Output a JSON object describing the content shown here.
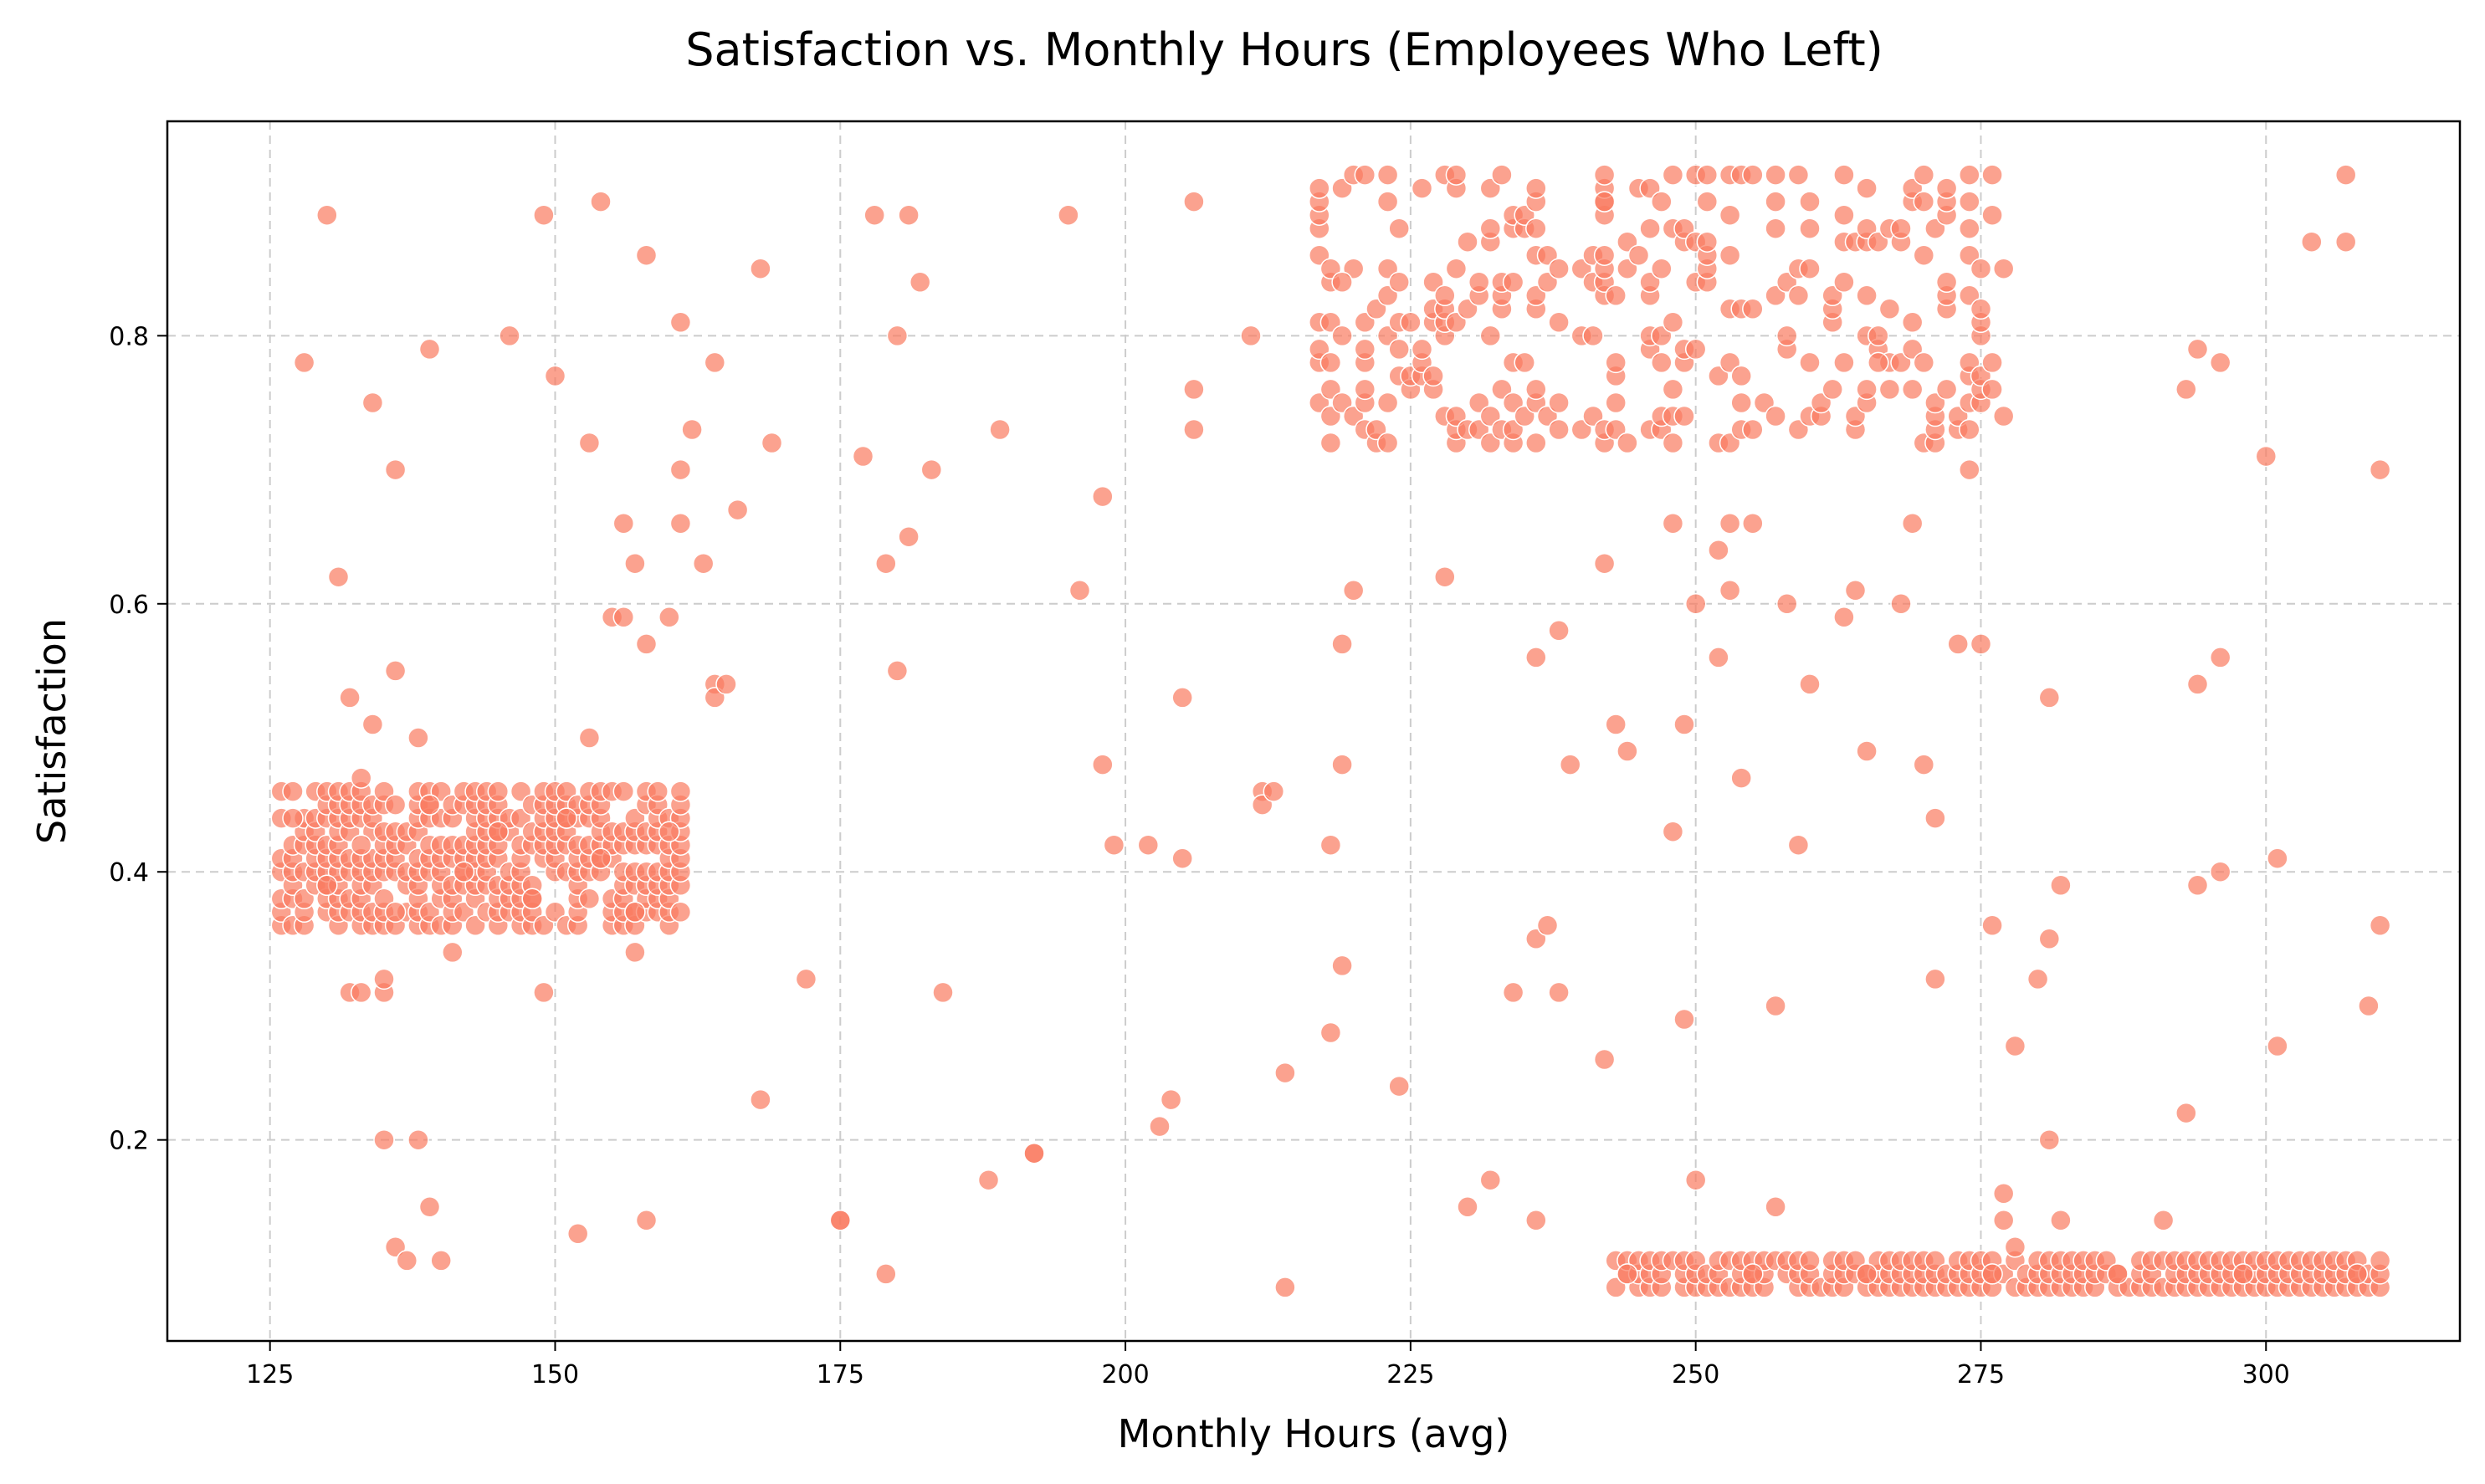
{
  "chart_data": {
    "type": "scatter",
    "title": "Satisfaction vs. Monthly Hours (Employees Who Left)",
    "xlabel": "Monthly Hours (avg)",
    "ylabel": "Satisfaction",
    "xlim": [
      116,
      317
    ],
    "ylim": [
      0.05,
      0.96
    ],
    "xticks": [
      125,
      150,
      175,
      200,
      225,
      250,
      275,
      300
    ],
    "yticks": [
      0.2,
      0.4,
      0.6,
      0.8
    ],
    "grid": true,
    "marker_color": "#fa7b5f",
    "marker_edge_color": "#ffffff",
    "marker_opacity": 0.7,
    "series": [
      {
        "values": [
          {
            "x": 130,
            "y": 0.89
          },
          {
            "x": 149,
            "y": 0.89
          },
          {
            "x": 154,
            "y": 0.9
          },
          {
            "x": 128,
            "y": 0.78
          },
          {
            "x": 134,
            "y": 0.75
          },
          {
            "x": 139,
            "y": 0.79
          },
          {
            "x": 146,
            "y": 0.8
          },
          {
            "x": 150,
            "y": 0.77
          },
          {
            "x": 131,
            "y": 0.62
          },
          {
            "x": 136,
            "y": 0.7
          },
          {
            "x": 132,
            "y": 0.53
          },
          {
            "x": 134,
            "y": 0.51
          },
          {
            "x": 136,
            "y": 0.55
          },
          {
            "x": 138,
            "y": 0.5
          },
          {
            "x": 133,
            "y": 0.47
          },
          {
            "x": 153,
            "y": 0.5
          },
          {
            "x": 153,
            "y": 0.72
          },
          {
            "x": 156,
            "y": 0.66
          },
          {
            "x": 157,
            "y": 0.63
          },
          {
            "x": 155,
            "y": 0.59
          },
          {
            "x": 156,
            "y": 0.59
          },
          {
            "x": 160,
            "y": 0.59
          },
          {
            "x": 158,
            "y": 0.57
          },
          {
            "x": 158,
            "y": 0.86
          },
          {
            "x": 161,
            "y": 0.81
          },
          {
            "x": 161,
            "y": 0.7
          },
          {
            "x": 161,
            "y": 0.66
          },
          {
            "x": 162,
            "y": 0.73
          },
          {
            "x": 163,
            "y": 0.63
          },
          {
            "x": 164,
            "y": 0.78
          },
          {
            "x": 164,
            "y": 0.54
          },
          {
            "x": 164,
            "y": 0.53
          },
          {
            "x": 165,
            "y": 0.54
          },
          {
            "x": 166,
            "y": 0.67
          },
          {
            "x": 168,
            "y": 0.85
          },
          {
            "x": 169,
            "y": 0.72
          },
          {
            "x": 141,
            "y": 0.34
          },
          {
            "x": 157,
            "y": 0.34
          },
          {
            "x": 132,
            "y": 0.31
          },
          {
            "x": 133,
            "y": 0.31
          },
          {
            "x": 135,
            "y": 0.31
          },
          {
            "x": 135,
            "y": 0.32
          },
          {
            "x": 149,
            "y": 0.31
          },
          {
            "x": 135,
            "y": 0.2
          },
          {
            "x": 138,
            "y": 0.2
          },
          {
            "x": 139,
            "y": 0.15
          },
          {
            "x": 136,
            "y": 0.12
          },
          {
            "x": 137,
            "y": 0.11
          },
          {
            "x": 140,
            "y": 0.11
          },
          {
            "x": 152,
            "y": 0.13
          },
          {
            "x": 158,
            "y": 0.14
          },
          {
            "x": 168,
            "y": 0.23
          },
          {
            "x": 172,
            "y": 0.32
          },
          {
            "x": 175,
            "y": 0.14
          },
          {
            "x": 175,
            "y": 0.14
          },
          {
            "x": 178,
            "y": 0.89
          },
          {
            "x": 181,
            "y": 0.89
          },
          {
            "x": 182,
            "y": 0.84
          },
          {
            "x": 180,
            "y": 0.8
          },
          {
            "x": 177,
            "y": 0.71
          },
          {
            "x": 183,
            "y": 0.7
          },
          {
            "x": 181,
            "y": 0.65
          },
          {
            "x": 179,
            "y": 0.63
          },
          {
            "x": 180,
            "y": 0.55
          },
          {
            "x": 184,
            "y": 0.31
          },
          {
            "x": 179,
            "y": 0.1
          },
          {
            "x": 188,
            "y": 0.17
          },
          {
            "x": 189,
            "y": 0.73
          },
          {
            "x": 192,
            "y": 0.19
          },
          {
            "x": 192,
            "y": 0.19
          },
          {
            "x": 195,
            "y": 0.89
          },
          {
            "x": 196,
            "y": 0.61
          },
          {
            "x": 198,
            "y": 0.68
          },
          {
            "x": 198,
            "y": 0.48
          },
          {
            "x": 199,
            "y": 0.42
          },
          {
            "x": 202,
            "y": 0.42
          },
          {
            "x": 203,
            "y": 0.21
          },
          {
            "x": 204,
            "y": 0.23
          },
          {
            "x": 205,
            "y": 0.53
          },
          {
            "x": 205,
            "y": 0.41
          },
          {
            "x": 206,
            "y": 0.9
          },
          {
            "x": 206,
            "y": 0.76
          },
          {
            "x": 206,
            "y": 0.73
          },
          {
            "x": 211,
            "y": 0.8
          },
          {
            "x": 212,
            "y": 0.46
          },
          {
            "x": 212,
            "y": 0.45
          },
          {
            "x": 213,
            "y": 0.46
          },
          {
            "x": 214,
            "y": 0.25
          },
          {
            "x": 214,
            "y": 0.09
          },
          {
            "x": 218,
            "y": 0.42
          },
          {
            "x": 218,
            "y": 0.28
          },
          {
            "x": 219,
            "y": 0.57
          },
          {
            "x": 219,
            "y": 0.48
          },
          {
            "x": 219,
            "y": 0.33
          },
          {
            "x": 220,
            "y": 0.61
          },
          {
            "x": 224,
            "y": 0.24
          },
          {
            "x": 228,
            "y": 0.62
          },
          {
            "x": 230,
            "y": 0.15
          },
          {
            "x": 232,
            "y": 0.17
          },
          {
            "x": 234,
            "y": 0.31
          },
          {
            "x": 236,
            "y": 0.56
          },
          {
            "x": 236,
            "y": 0.35
          },
          {
            "x": 237,
            "y": 0.36
          },
          {
            "x": 236,
            "y": 0.14
          },
          {
            "x": 238,
            "y": 0.58
          },
          {
            "x": 238,
            "y": 0.31
          },
          {
            "x": 239,
            "y": 0.48
          },
          {
            "x": 242,
            "y": 0.63
          },
          {
            "x": 242,
            "y": 0.26
          },
          {
            "x": 243,
            "y": 0.51
          },
          {
            "x": 244,
            "y": 0.49
          },
          {
            "x": 248,
            "y": 0.66
          },
          {
            "x": 248,
            "y": 0.43
          },
          {
            "x": 249,
            "y": 0.51
          },
          {
            "x": 249,
            "y": 0.29
          },
          {
            "x": 250,
            "y": 0.6
          },
          {
            "x": 250,
            "y": 0.17
          },
          {
            "x": 252,
            "y": 0.64
          },
          {
            "x": 252,
            "y": 0.56
          },
          {
            "x": 253,
            "y": 0.66
          },
          {
            "x": 253,
            "y": 0.61
          },
          {
            "x": 254,
            "y": 0.47
          },
          {
            "x": 255,
            "y": 0.66
          },
          {
            "x": 257,
            "y": 0.3
          },
          {
            "x": 257,
            "y": 0.15
          },
          {
            "x": 258,
            "y": 0.6
          },
          {
            "x": 259,
            "y": 0.42
          },
          {
            "x": 260,
            "y": 0.54
          },
          {
            "x": 263,
            "y": 0.59
          },
          {
            "x": 264,
            "y": 0.61
          },
          {
            "x": 265,
            "y": 0.49
          },
          {
            "x": 268,
            "y": 0.6
          },
          {
            "x": 269,
            "y": 0.66
          },
          {
            "x": 270,
            "y": 0.48
          },
          {
            "x": 271,
            "y": 0.44
          },
          {
            "x": 271,
            "y": 0.32
          },
          {
            "x": 273,
            "y": 0.57
          },
          {
            "x": 275,
            "y": 0.57
          },
          {
            "x": 274,
            "y": 0.7
          },
          {
            "x": 276,
            "y": 0.36
          },
          {
            "x": 277,
            "y": 0.16
          },
          {
            "x": 277,
            "y": 0.14
          },
          {
            "x": 278,
            "y": 0.12
          },
          {
            "x": 278,
            "y": 0.27
          },
          {
            "x": 280,
            "y": 0.32
          },
          {
            "x": 281,
            "y": 0.53
          },
          {
            "x": 281,
            "y": 0.35
          },
          {
            "x": 281,
            "y": 0.2
          },
          {
            "x": 282,
            "y": 0.39
          },
          {
            "x": 282,
            "y": 0.14
          },
          {
            "x": 291,
            "y": 0.14
          },
          {
            "x": 293,
            "y": 0.76
          },
          {
            "x": 293,
            "y": 0.22
          },
          {
            "x": 294,
            "y": 0.79
          },
          {
            "x": 294,
            "y": 0.54
          },
          {
            "x": 294,
            "y": 0.39
          },
          {
            "x": 296,
            "y": 0.78
          },
          {
            "x": 296,
            "y": 0.56
          },
          {
            "x": 296,
            "y": 0.4
          },
          {
            "x": 300,
            "y": 0.71
          },
          {
            "x": 301,
            "y": 0.41
          },
          {
            "x": 301,
            "y": 0.27
          },
          {
            "x": 304,
            "y": 0.87
          },
          {
            "x": 307,
            "y": 0.92
          },
          {
            "x": 307,
            "y": 0.87
          },
          {
            "x": 309,
            "y": 0.3
          },
          {
            "x": 310,
            "y": 0.7
          },
          {
            "x": 310,
            "y": 0.36
          },
          {
            "x": 127,
            "y": 0.44
          },
          {
            "x": 130,
            "y": 0.39
          },
          {
            "x": 133,
            "y": 0.42
          },
          {
            "x": 136,
            "y": 0.37
          },
          {
            "x": 139,
            "y": 0.45
          },
          {
            "x": 142,
            "y": 0.4
          },
          {
            "x": 145,
            "y": 0.43
          },
          {
            "x": 148,
            "y": 0.38
          },
          {
            "x": 151,
            "y": 0.44
          },
          {
            "x": 154,
            "y": 0.41
          },
          {
            "x": 157,
            "y": 0.37
          },
          {
            "x": 160,
            "y": 0.43
          },
          {
            "x": 219,
            "y": 0.84
          },
          {
            "x": 224,
            "y": 0.79
          },
          {
            "x": 230,
            "y": 0.87
          },
          {
            "x": 236,
            "y": 0.76
          },
          {
            "x": 242,
            "y": 0.9
          },
          {
            "x": 248,
            "y": 0.81
          },
          {
            "x": 254,
            "y": 0.75
          },
          {
            "x": 260,
            "y": 0.88
          },
          {
            "x": 266,
            "y": 0.78
          },
          {
            "x": 272,
            "y": 0.84
          },
          {
            "x": 244,
            "y": 0.1
          },
          {
            "x": 255,
            "y": 0.1
          },
          {
            "x": 265,
            "y": 0.1
          },
          {
            "x": 276,
            "y": 0.1
          },
          {
            "x": 287,
            "y": 0.1
          },
          {
            "x": 298,
            "y": 0.1
          },
          {
            "x": 308,
            "y": 0.1
          }
        ]
      }
    ],
    "clusters": [
      {
        "x_range": [
          126,
          161
        ],
        "y_range": [
          0.36,
          0.46
        ],
        "x_step": 1,
        "y_values": [
          0.36,
          0.37,
          0.38,
          0.39,
          0.4,
          0.41,
          0.42,
          0.43,
          0.44,
          0.45,
          0.46
        ],
        "density": 0.72
      },
      {
        "x_range": [
          217,
          277
        ],
        "y_range": [
          0.72,
          0.92
        ],
        "x_step": 1,
        "y_values": [
          0.72,
          0.73,
          0.74,
          0.75,
          0.76,
          0.77,
          0.78,
          0.79,
          0.8,
          0.81,
          0.82,
          0.83,
          0.84,
          0.85,
          0.86,
          0.87,
          0.88,
          0.89,
          0.9,
          0.91,
          0.92
        ],
        "density": 0.22
      },
      {
        "x_range": [
          243,
          310
        ],
        "y_range": [
          0.09,
          0.11
        ],
        "x_step": 1,
        "y_values": [
          0.09,
          0.1,
          0.11
        ],
        "density": 0.85
      }
    ]
  }
}
